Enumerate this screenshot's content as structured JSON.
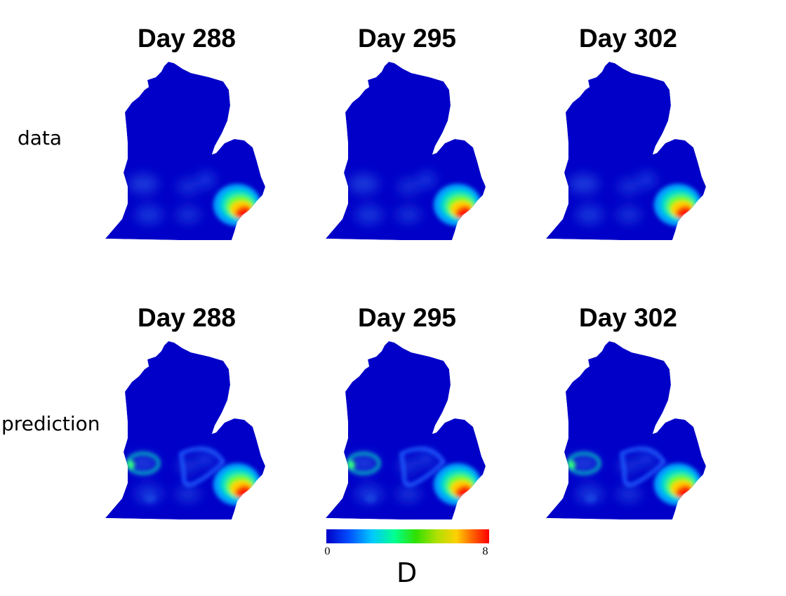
{
  "columns": [
    {
      "label": "Day 288"
    },
    {
      "label": "Day 295"
    },
    {
      "label": "Day 302"
    }
  ],
  "rows": [
    {
      "label": "data"
    },
    {
      "label": "prediction"
    }
  ],
  "colorbar": {
    "min_label": "0",
    "max_label": "8",
    "variable": "D",
    "min": 0,
    "max": 8,
    "colors": [
      "#0000c8",
      "#0050ff",
      "#00c8ff",
      "#00ff90",
      "#30e000",
      "#b0e000",
      "#ffd000",
      "#ff6000",
      "#ff0000"
    ]
  },
  "colors": {
    "background_field": "#0000c8"
  }
}
